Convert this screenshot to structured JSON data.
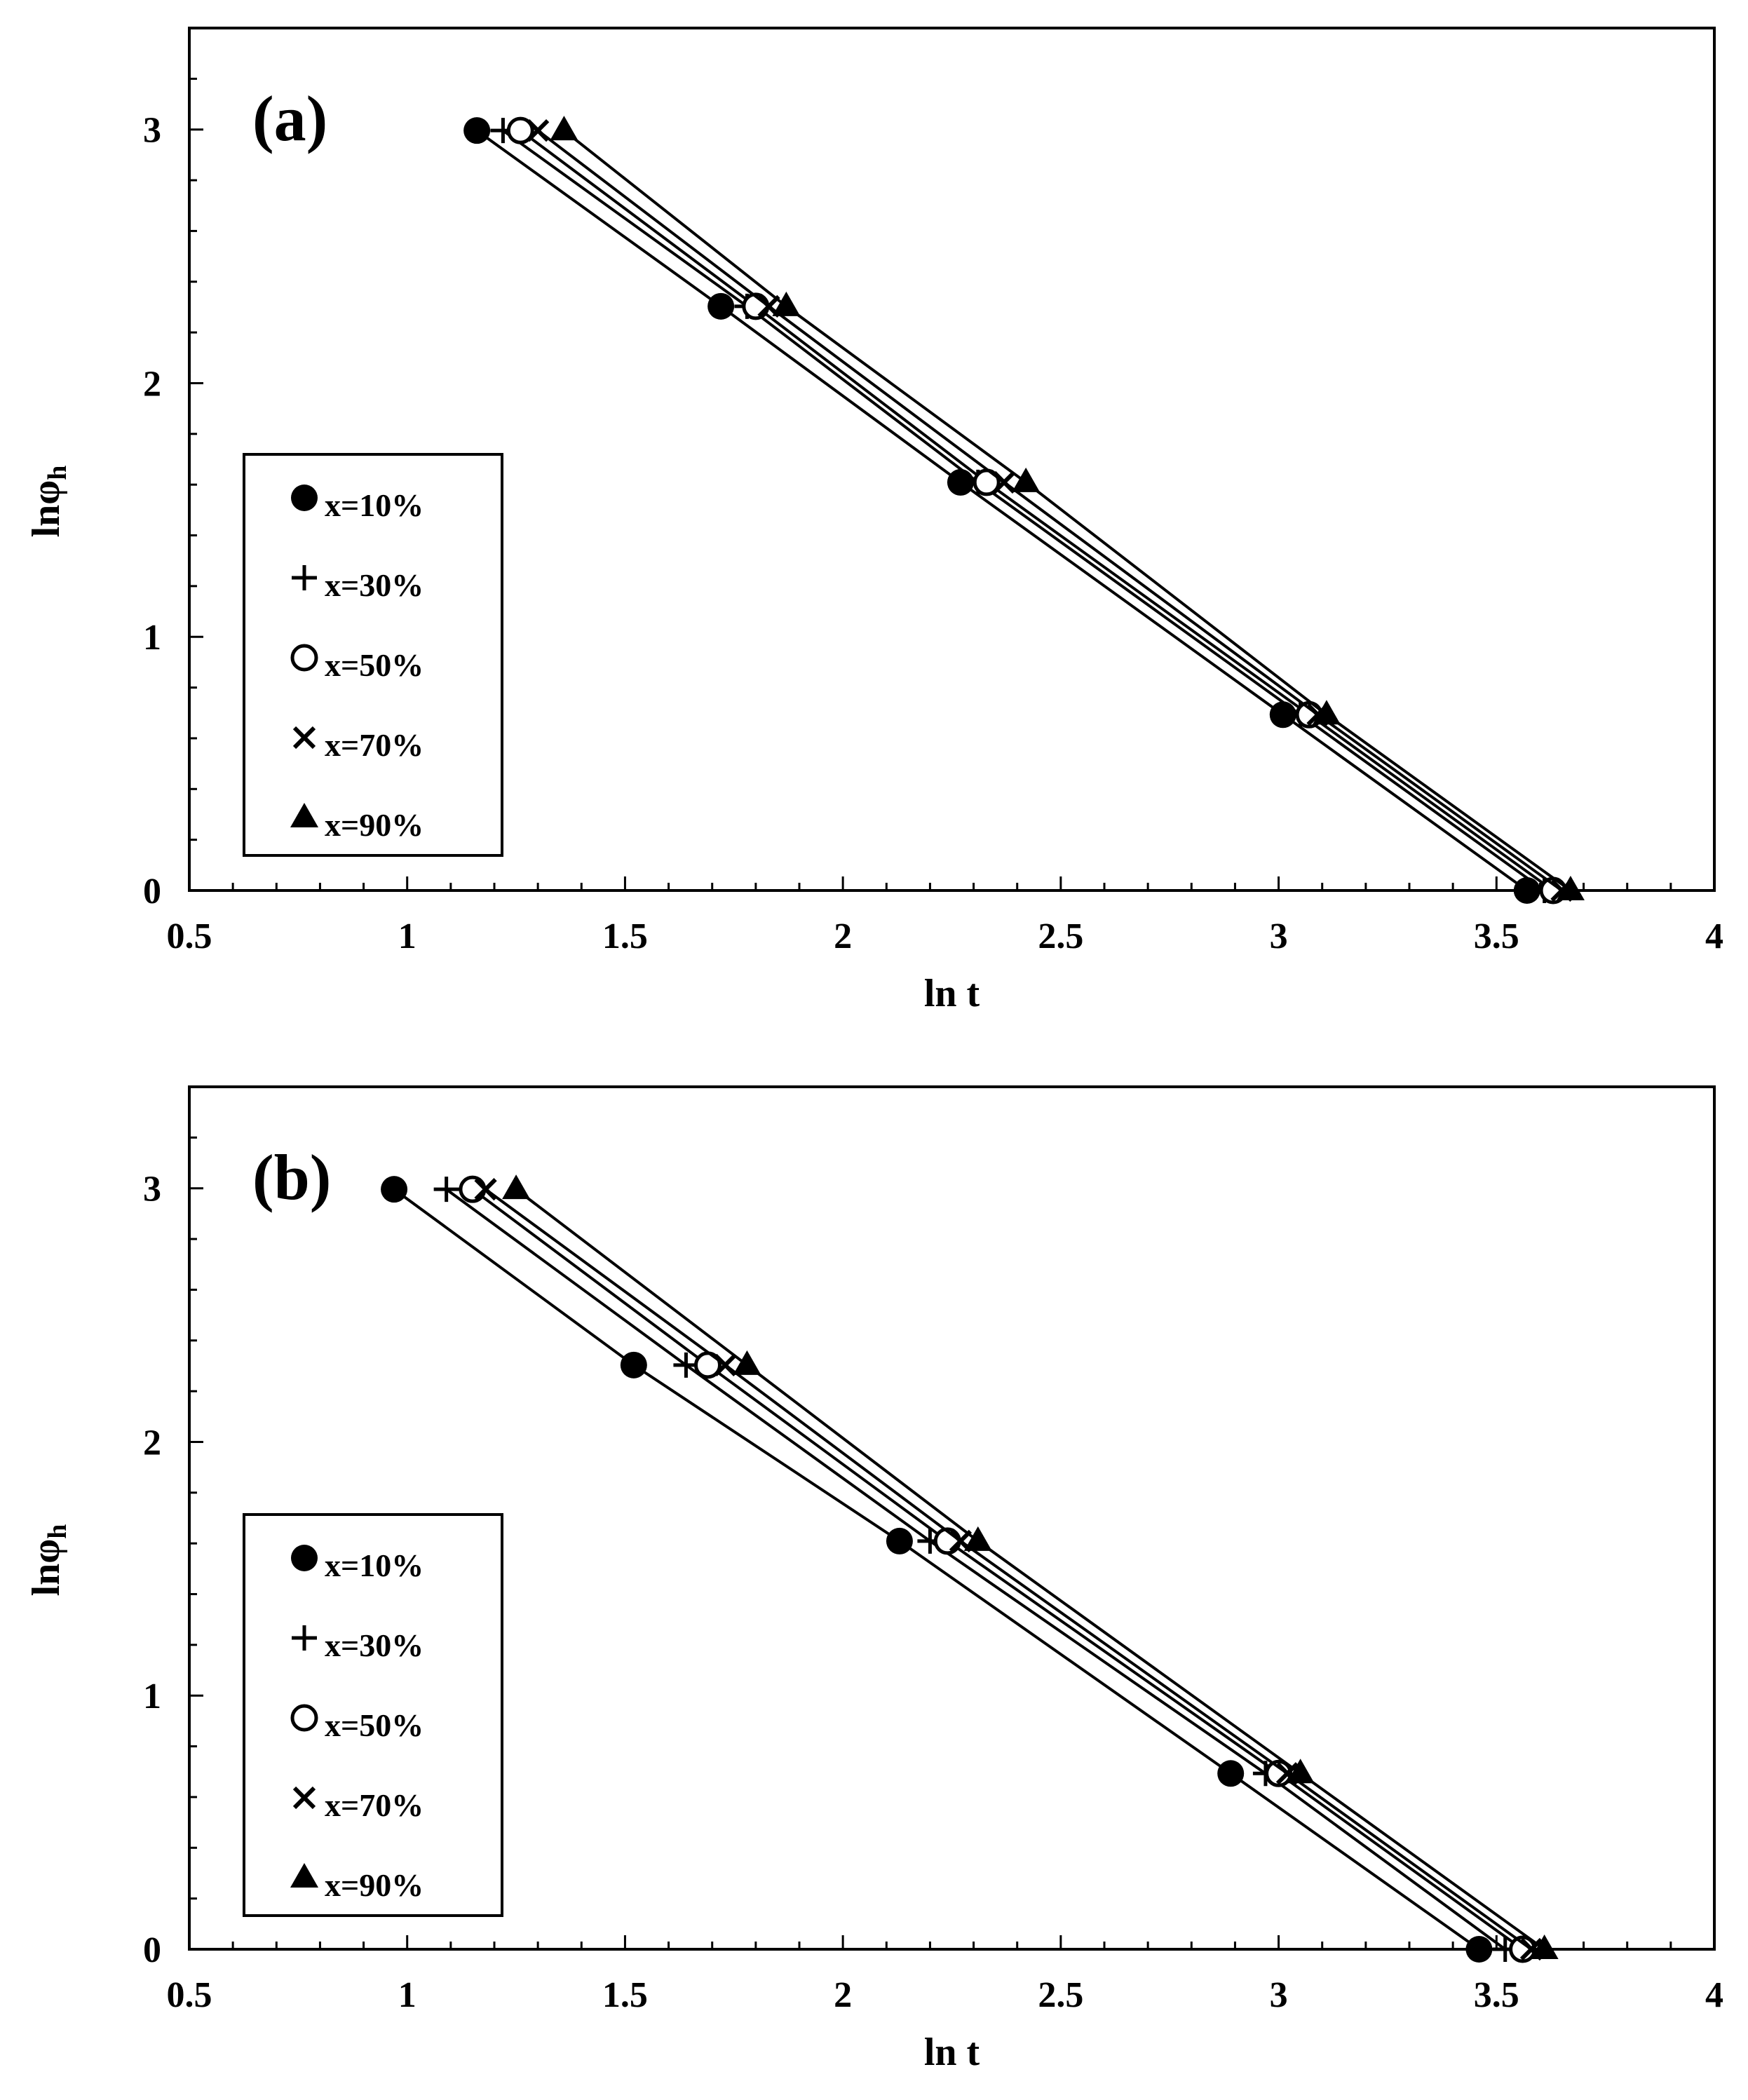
{
  "chart_data": [
    {
      "type": "line",
      "panel_label": "(a)",
      "xlabel": "ln t",
      "ylabel_main": "lnφ",
      "ylabel_sub": "h",
      "xlim": [
        0.5,
        4
      ],
      "ylim": [
        0,
        3.4
      ],
      "x_ticks": [
        0.5,
        1,
        1.5,
        2,
        2.5,
        3,
        3.5,
        4
      ],
      "x_tick_labels": [
        "0.5",
        "1",
        "1.5",
        "2",
        "2.5",
        "3",
        "3.5",
        "4"
      ],
      "y_ticks": [
        0,
        1,
        2,
        3
      ],
      "y_tick_labels": [
        "0",
        "1",
        "2",
        "3"
      ],
      "grid": false,
      "legend_position": "middle-left",
      "series": [
        {
          "name": "x=10%",
          "marker": "filled-circle",
          "x": [
            1.16,
            1.72,
            2.27,
            3.01,
            3.57
          ],
          "y": [
            2.996,
            2.303,
            1.609,
            0.693,
            0
          ]
        },
        {
          "name": "x=30%",
          "marker": "plus",
          "x": [
            1.22,
            1.78,
            2.31,
            3.05,
            3.61
          ],
          "y": [
            2.996,
            2.303,
            1.609,
            0.693,
            0
          ]
        },
        {
          "name": "x=50%",
          "marker": "open-circle",
          "x": [
            1.26,
            1.8,
            2.33,
            3.07,
            3.63
          ],
          "y": [
            2.996,
            2.303,
            1.609,
            0.693,
            0
          ]
        },
        {
          "name": "x=70%",
          "marker": "x-cross",
          "x": [
            1.3,
            1.83,
            2.37,
            3.09,
            3.65
          ],
          "y": [
            2.996,
            2.303,
            1.609,
            0.693,
            0
          ]
        },
        {
          "name": "x=90%",
          "marker": "filled-triangle",
          "x": [
            1.36,
            1.87,
            2.42,
            3.11,
            3.67
          ],
          "y": [
            2.996,
            2.303,
            1.609,
            0.693,
            0
          ]
        }
      ]
    },
    {
      "type": "line",
      "panel_label": "(b)",
      "xlabel": "ln t",
      "ylabel_main": "lnφ",
      "ylabel_sub": "h",
      "xlim": [
        0.5,
        4
      ],
      "ylim": [
        0,
        3.4
      ],
      "x_ticks": [
        0.5,
        1,
        1.5,
        2,
        2.5,
        3,
        3.5,
        4
      ],
      "x_tick_labels": [
        "0.5",
        "1",
        "1.5",
        "2",
        "2.5",
        "3",
        "3.5",
        "4"
      ],
      "y_ticks": [
        0,
        1,
        2,
        3
      ],
      "y_tick_labels": [
        "0",
        "1",
        "2",
        "3"
      ],
      "grid": false,
      "legend_position": "middle-left",
      "series": [
        {
          "name": "x=10%",
          "marker": "filled-circle",
          "x": [
            0.97,
            1.52,
            2.13,
            2.89,
            3.46
          ],
          "y": [
            2.996,
            2.303,
            1.609,
            0.693,
            0
          ]
        },
        {
          "name": "x=30%",
          "marker": "plus",
          "x": [
            1.09,
            1.64,
            2.2,
            2.97,
            3.52
          ],
          "y": [
            2.996,
            2.303,
            1.609,
            0.693,
            0
          ]
        },
        {
          "name": "x=50%",
          "marker": "open-circle",
          "x": [
            1.15,
            1.69,
            2.24,
            3.0,
            3.56
          ],
          "y": [
            2.996,
            2.303,
            1.609,
            0.693,
            0
          ]
        },
        {
          "name": "x=70%",
          "marker": "x-cross",
          "x": [
            1.18,
            1.73,
            2.27,
            3.02,
            3.58
          ],
          "y": [
            2.996,
            2.303,
            1.609,
            0.693,
            0
          ]
        },
        {
          "name": "x=90%",
          "marker": "filled-triangle",
          "x": [
            1.25,
            1.78,
            2.31,
            3.05,
            3.61
          ],
          "y": [
            2.996,
            2.303,
            1.609,
            0.693,
            0
          ]
        }
      ]
    }
  ]
}
